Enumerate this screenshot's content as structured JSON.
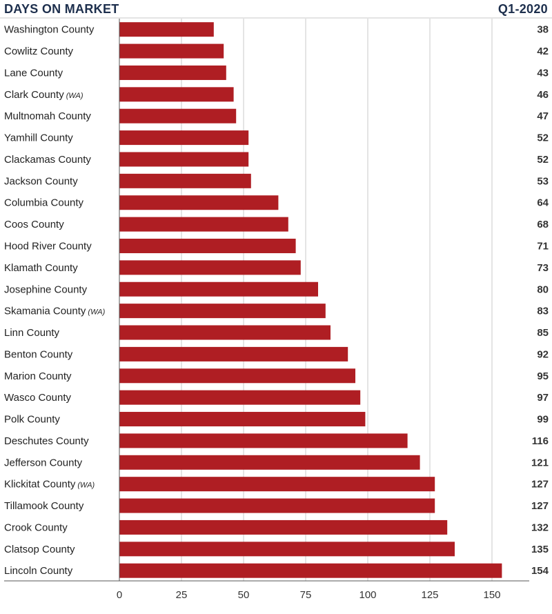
{
  "chart_data": {
    "type": "bar",
    "orientation": "horizontal",
    "title": "DAYS ON MARKET",
    "period": "Q1-2020",
    "categories": [
      {
        "name": "Washington County",
        "note": ""
      },
      {
        "name": "Cowlitz County",
        "note": ""
      },
      {
        "name": "Lane County",
        "note": ""
      },
      {
        "name": "Clark County",
        "note": "(WA)"
      },
      {
        "name": "Multnomah County",
        "note": ""
      },
      {
        "name": "Yamhill County",
        "note": ""
      },
      {
        "name": "Clackamas County",
        "note": ""
      },
      {
        "name": "Jackson County",
        "note": ""
      },
      {
        "name": "Columbia County",
        "note": ""
      },
      {
        "name": "Coos County",
        "note": ""
      },
      {
        "name": "Hood River County",
        "note": ""
      },
      {
        "name": "Klamath County",
        "note": ""
      },
      {
        "name": "Josephine County",
        "note": ""
      },
      {
        "name": "Skamania County",
        "note": "(WA)"
      },
      {
        "name": "Linn County",
        "note": ""
      },
      {
        "name": "Benton County",
        "note": ""
      },
      {
        "name": "Marion County",
        "note": ""
      },
      {
        "name": "Wasco County",
        "note": ""
      },
      {
        "name": "Polk County",
        "note": ""
      },
      {
        "name": "Deschutes County",
        "note": ""
      },
      {
        "name": "Jefferson County",
        "note": ""
      },
      {
        "name": "Klickitat County",
        "note": "(WA)"
      },
      {
        "name": "Tillamook County",
        "note": ""
      },
      {
        "name": "Crook County",
        "note": ""
      },
      {
        "name": "Clatsop County",
        "note": ""
      },
      {
        "name": "Lincoln County",
        "note": ""
      }
    ],
    "values": [
      38,
      42,
      43,
      46,
      47,
      52,
      52,
      53,
      64,
      68,
      71,
      73,
      80,
      83,
      85,
      92,
      95,
      97,
      99,
      116,
      121,
      127,
      127,
      132,
      135,
      154
    ],
    "xlim": [
      0,
      165
    ],
    "xticks": [
      0,
      25,
      50,
      75,
      100,
      125,
      150
    ],
    "grid": true,
    "bar_color": "#af1e23",
    "title_color": "#1d2f4d"
  }
}
